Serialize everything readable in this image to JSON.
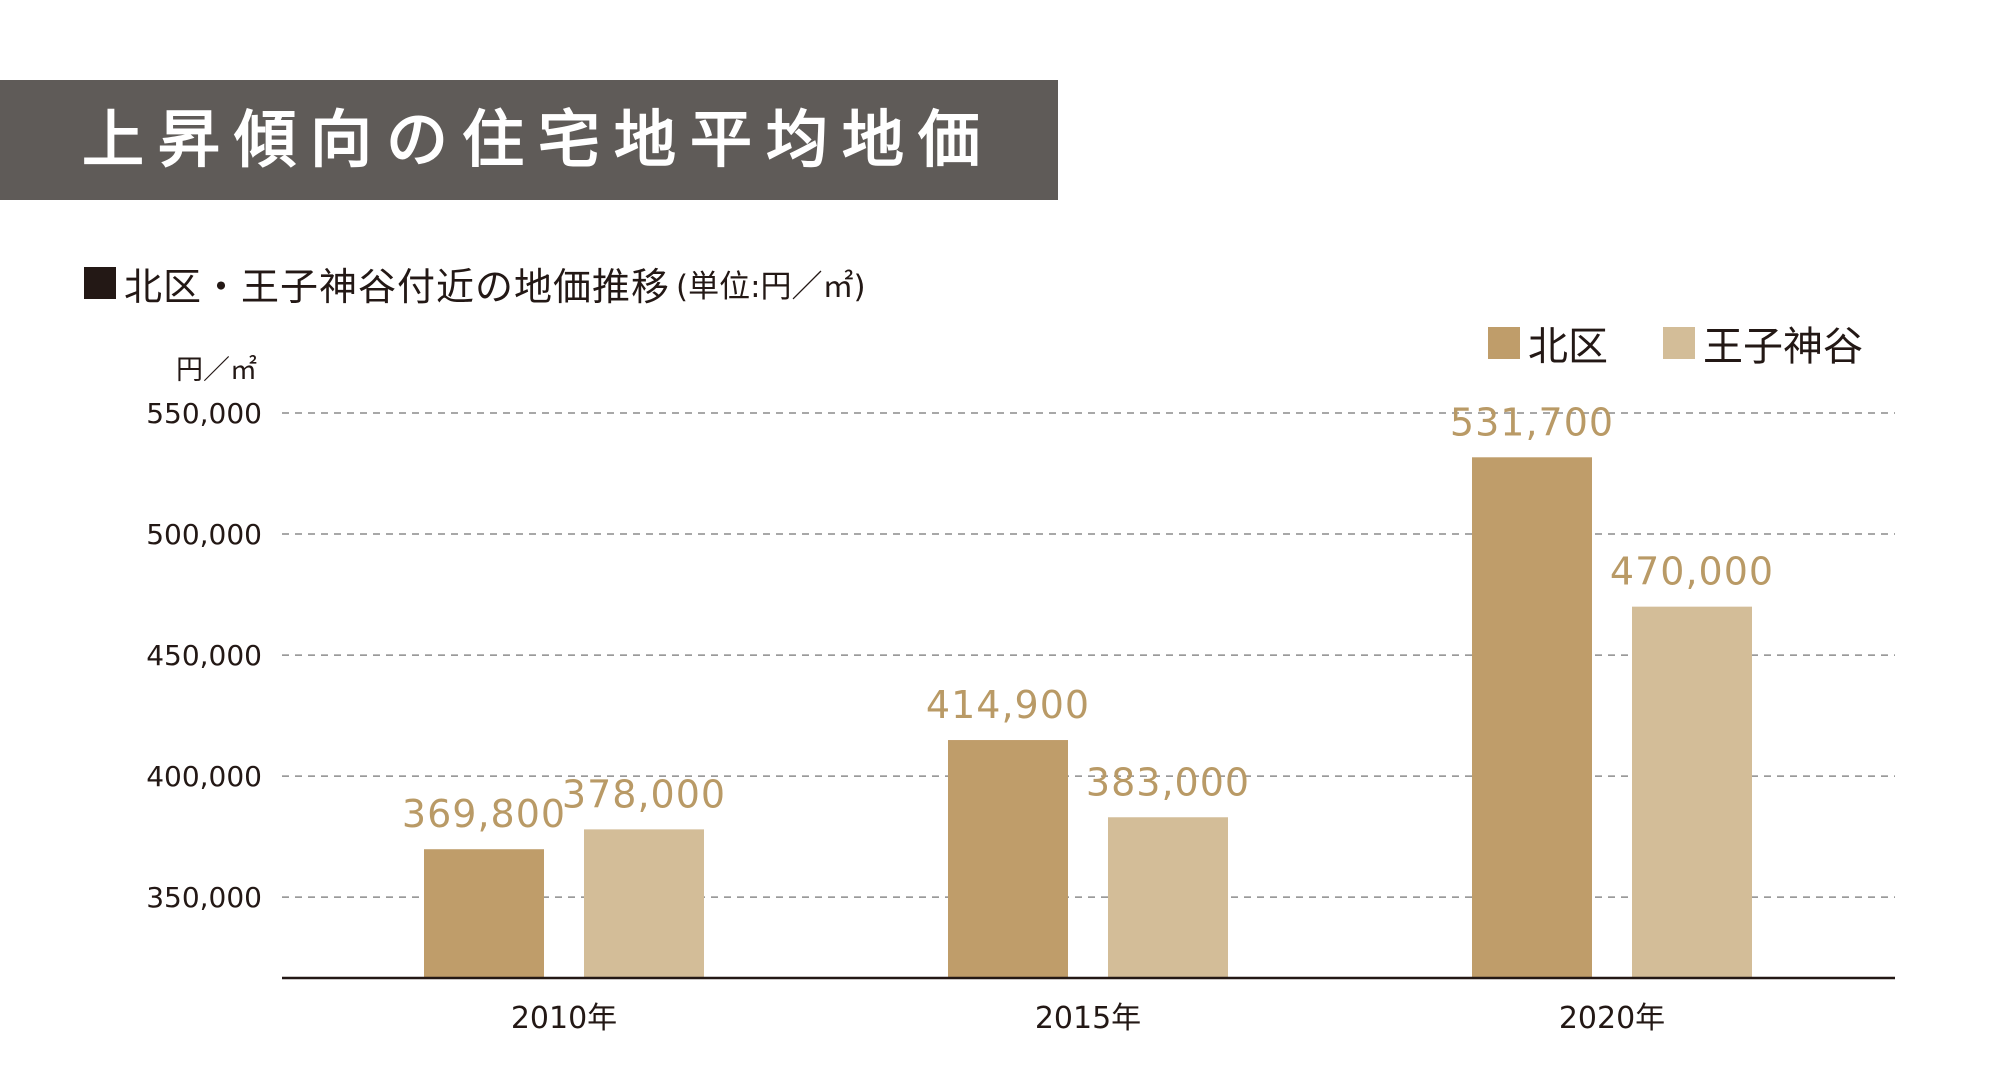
{
  "header": {
    "title": "上昇傾向の住宅地平均地価"
  },
  "subtitle": {
    "main": "北区・王子神谷付近の地価推移",
    "unit": "(単位:円／㎡)"
  },
  "chart_data": {
    "type": "bar",
    "categories": [
      "2010年",
      "2015年",
      "2020年"
    ],
    "series": [
      {
        "name": "北区",
        "color": "#bf9d6a",
        "values": [
          369800,
          414900,
          531700
        ]
      },
      {
        "name": "王子神谷",
        "color": "#d3bd98",
        "values": [
          378000,
          383000,
          470000
        ]
      }
    ],
    "data_labels": [
      [
        "369,800",
        "414,900",
        "531,700"
      ],
      [
        "378,000",
        "383,000",
        "470,000"
      ]
    ],
    "ylabel": "円／㎡",
    "ylim": [
      316600,
      550000
    ],
    "yticks": [
      350000,
      400000,
      450000,
      500000,
      550000
    ],
    "ytick_labels": [
      "350,000",
      "400,000",
      "450,000",
      "500,000",
      "550,000"
    ],
    "grid": true,
    "grid_style": "dashed",
    "legend_position": "top-right",
    "data_label_color": "#b99a66"
  }
}
